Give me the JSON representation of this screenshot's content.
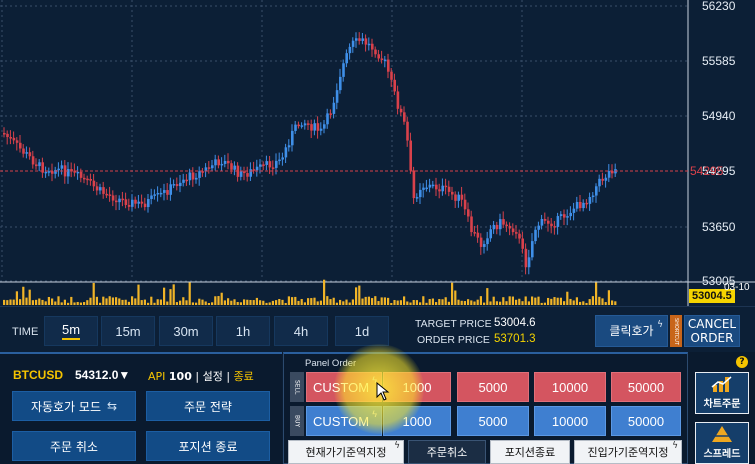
{
  "chart": {
    "y_axis_ticks": [
      "56230",
      "55585",
      "54940",
      "54295",
      "53650",
      "53005"
    ],
    "current_price_label": "54295",
    "volume_badge": "53004.5",
    "date_label": "03-10",
    "colors": {
      "up": "#3f8fe8",
      "down": "#d9414b",
      "volume": "#f0b428",
      "background": "#0c1f36",
      "grid": "#3a4f6a",
      "price_line": "#d9414b"
    }
  },
  "timeframes": {
    "label": "TIME",
    "items": [
      "5m",
      "15m",
      "30m",
      "1h",
      "4h",
      "1d"
    ],
    "active": "5m"
  },
  "prices": {
    "target_label": "TARGET PRICE",
    "target_value": "53004.6",
    "order_label": "ORDER PRICE",
    "order_value": "53701.3"
  },
  "click_order_button": "클릭호가",
  "cancel_order_button": {
    "line1": "CANCEL",
    "line2": "ORDER"
  },
  "sidebar_tag": "SHORTCUT",
  "left_panel": {
    "symbol": "BTCUSD",
    "price": "54312.0▼",
    "api_label": "API",
    "api_value": "100",
    "settings_label": "설정",
    "exit_label": "종료",
    "auto_mode_button": "자동호가 모드",
    "strategy_button": "주문 전략",
    "cancel_button": "주문 취소",
    "close_position_button": "포지션 종료"
  },
  "order_panel": {
    "title": "Panel Order",
    "sell_tab": "SELL",
    "buy_tab": "BUY",
    "sell_custom": "CUSTOM",
    "buy_custom": "CUSTOM",
    "sell_amounts": [
      "1000",
      "5000",
      "10000",
      "50000"
    ],
    "buy_amounts": [
      "1000",
      "5000",
      "10000",
      "50000"
    ],
    "current_price_button": "현재가기준역지정",
    "cancel_order_button": "주문취소",
    "close_position_button": "포지션종료",
    "entry_price_button": "진입가기준역지정"
  },
  "right_panel": {
    "help": "?",
    "chart_order_button": "차트주문",
    "spread_button": "스프레드"
  }
}
